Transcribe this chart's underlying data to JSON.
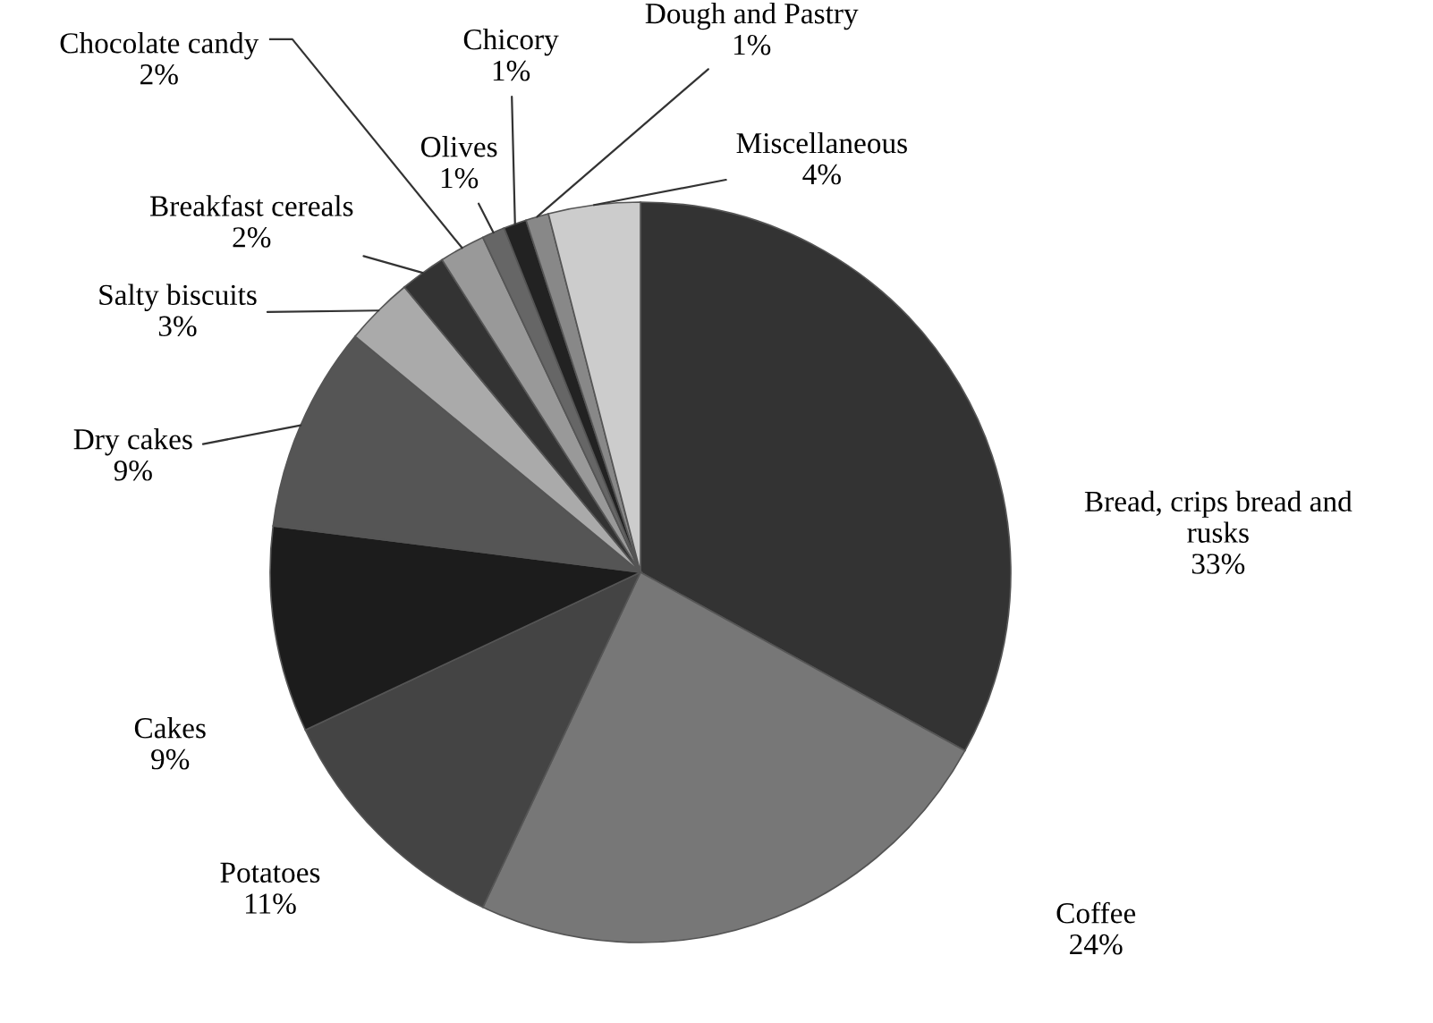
{
  "chart_data": {
    "type": "pie",
    "categories": [
      "Bread, crips bread and rusks",
      "Coffee",
      "Potatoes",
      "Cakes",
      "Dry cakes",
      "Salty biscuits",
      "Breakfast cereals",
      "Chocolate candy",
      "Olives",
      "Chicory",
      "Dough and Pastry",
      "Miscellaneous"
    ],
    "values": [
      33,
      24,
      11,
      9,
      9,
      3,
      2,
      2,
      1,
      1,
      1,
      4
    ],
    "colors": [
      "#333333",
      "#777777",
      "#444444",
      "#1c1c1c",
      "#555555",
      "#aaaaaa",
      "#333333",
      "#999999",
      "#666666",
      "#222222",
      "#888888",
      "#cccccc"
    ],
    "data_labels": true,
    "value_labels": [
      "33%",
      "24%",
      "11%",
      "9%",
      "9%",
      "3%",
      "2%",
      "2%",
      "1%",
      "1%",
      "1%",
      "4%"
    ]
  }
}
